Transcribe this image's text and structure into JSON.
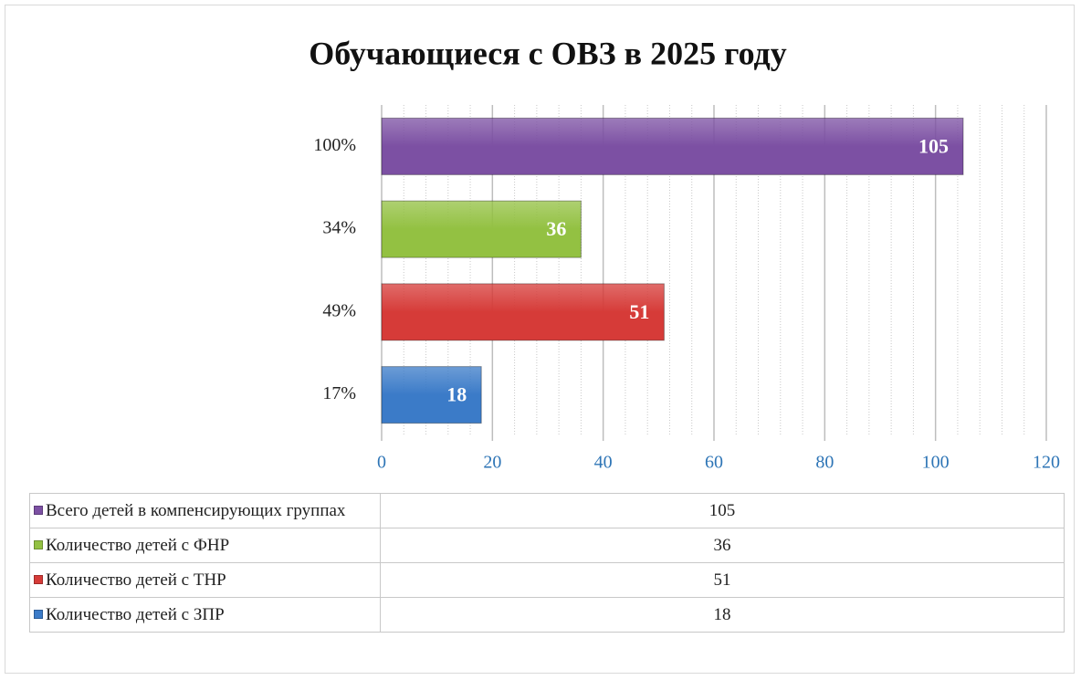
{
  "chart_data": {
    "type": "bar",
    "orientation": "horizontal",
    "title": "Обучающиеся с ОВЗ в 2025 году",
    "categories": [
      "17%",
      "49%",
      "34%",
      "100%"
    ],
    "values": [
      18,
      51,
      36,
      105
    ],
    "colors": [
      "#3b7bc8",
      "#d63b38",
      "#93c142",
      "#7c50a3"
    ],
    "names": [
      "Количество детей с ЗПР",
      "Количество детей с ТНР",
      "Количество детей с ФНР",
      "Всего детей в компенсирующих группах"
    ],
    "xlim": [
      0,
      120
    ],
    "xticks": [
      0,
      20,
      40,
      60,
      80,
      100,
      120
    ],
    "grid": true,
    "minor_grid_divisions": 5,
    "data_table": true
  }
}
